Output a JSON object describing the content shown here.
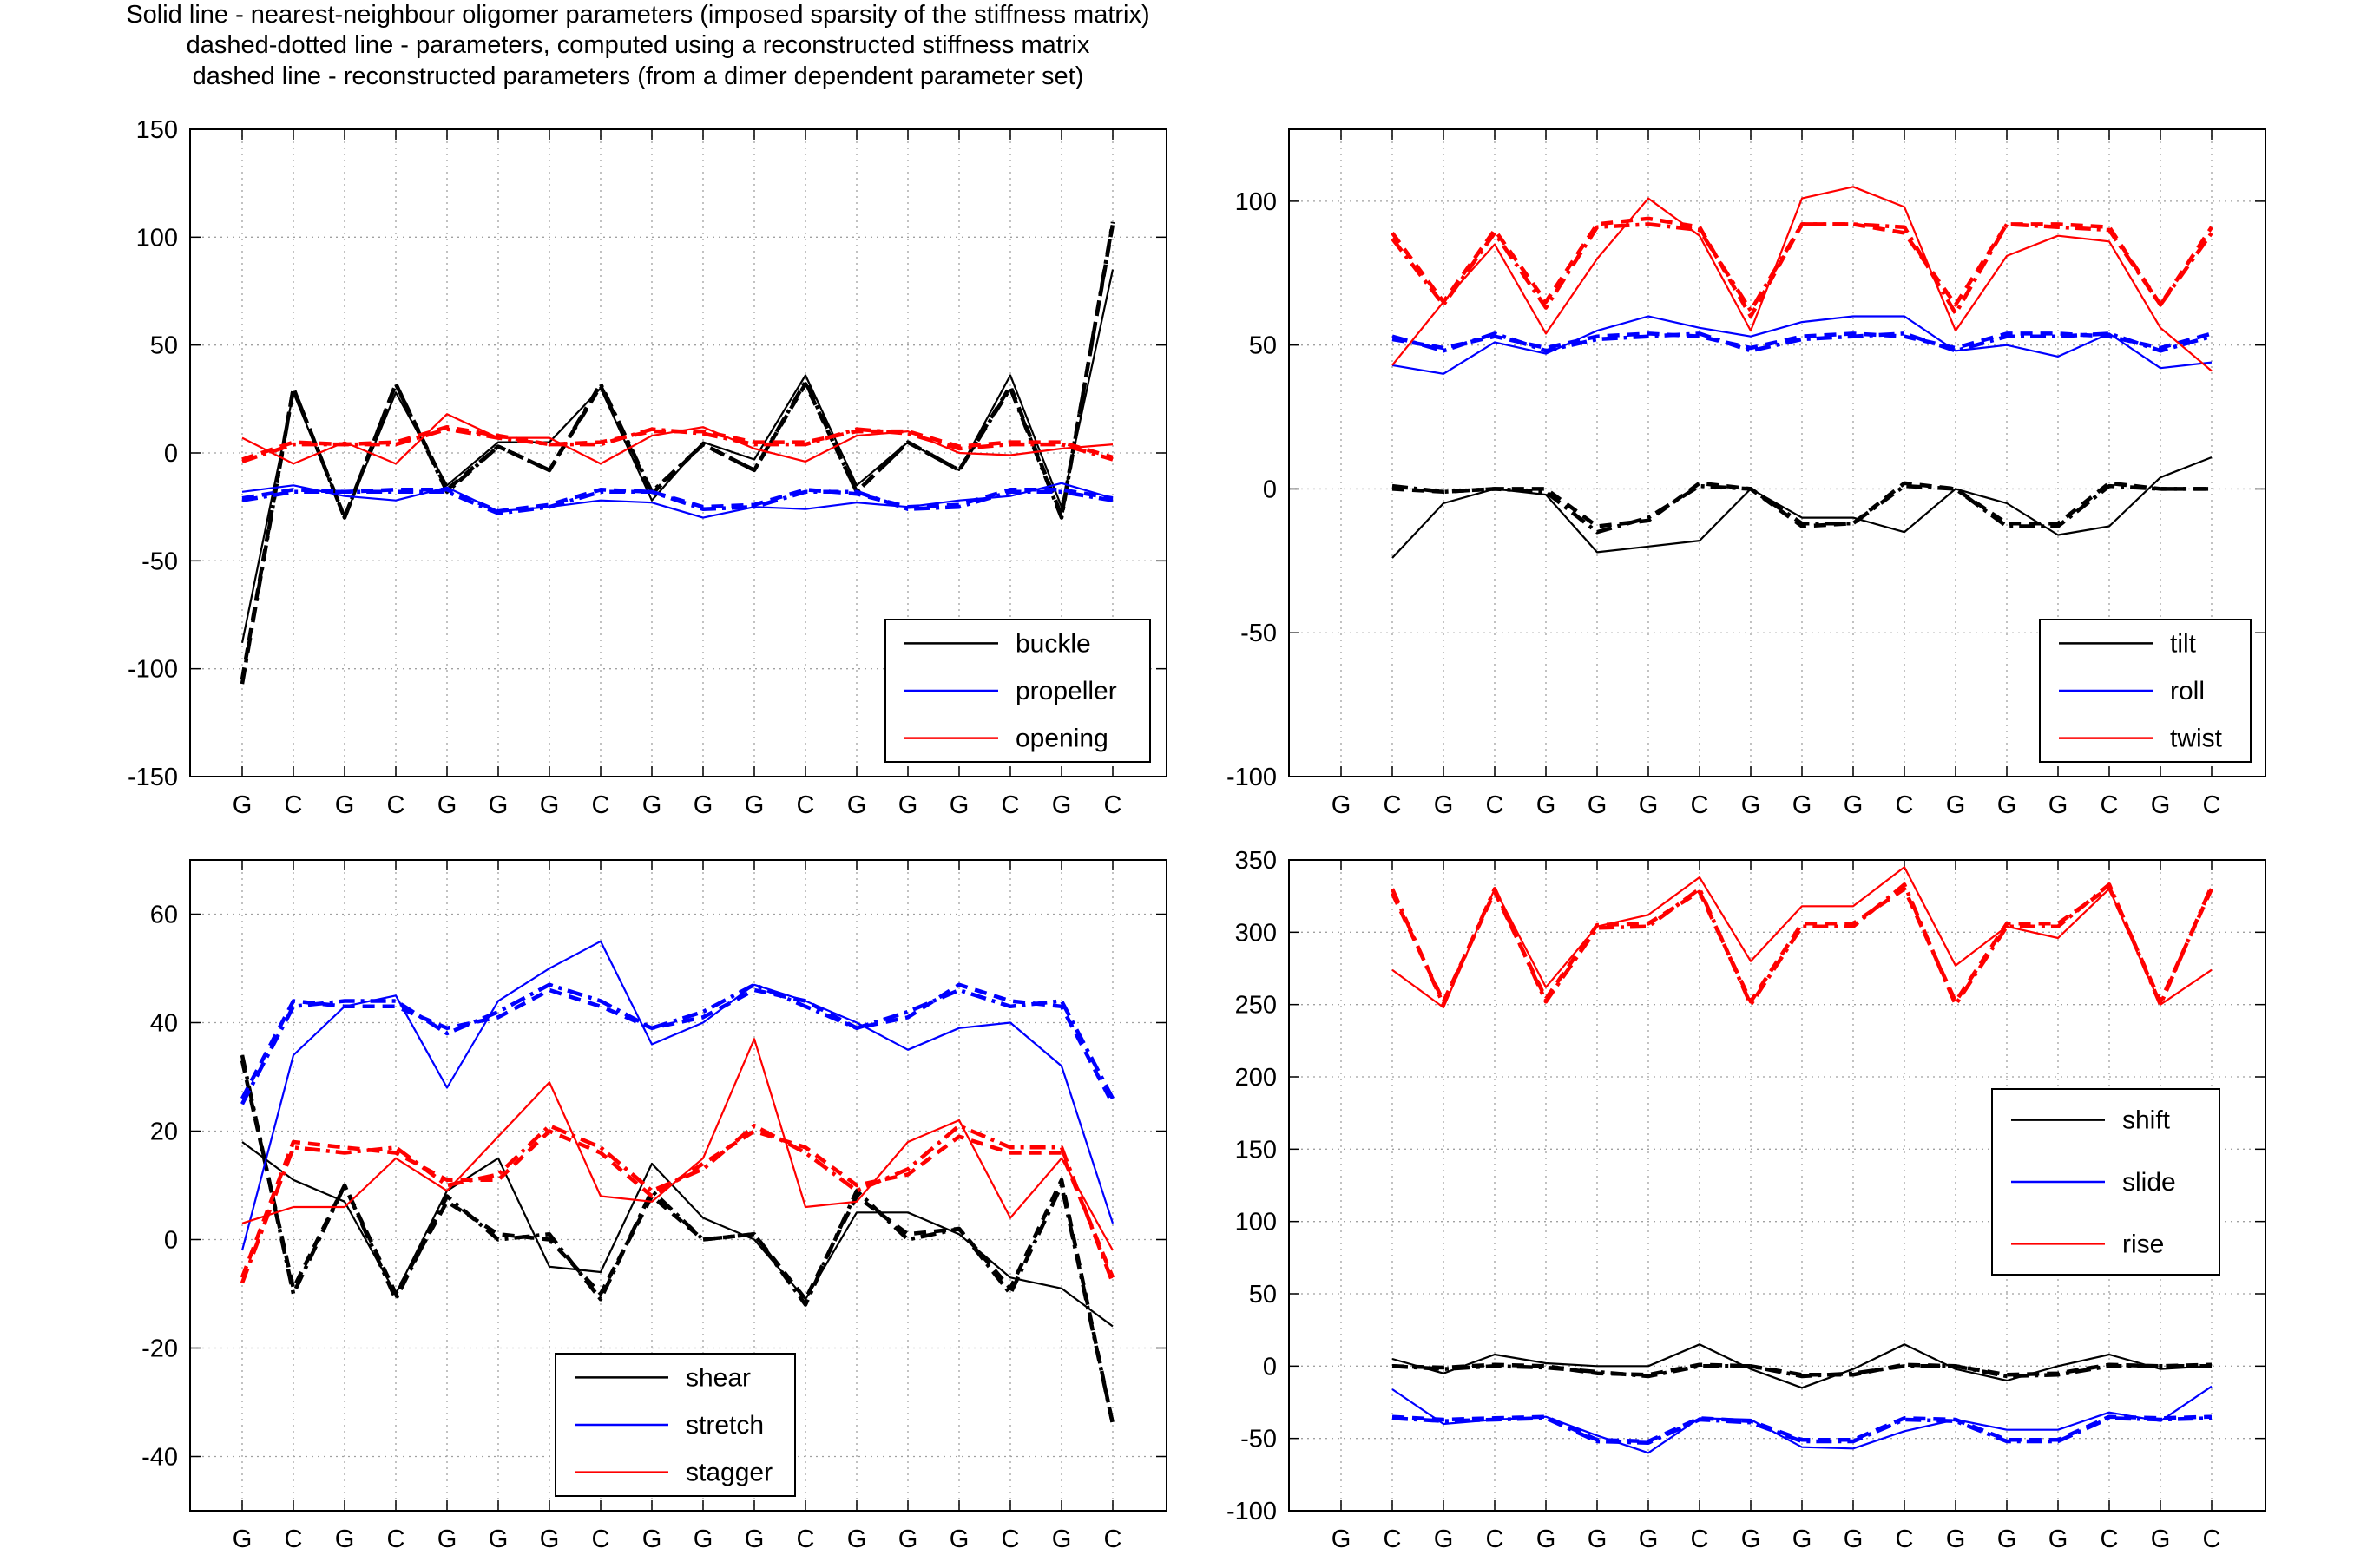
{
  "figure_title": [
    "Solid line - nearest-neighbour oligomer parameters (imposed sparsity of the stiffness matrix)",
    "dashed-dotted line - parameters, computed using a reconstructed stiffness matrix",
    "dashed line - reconstructed parameters (from a dimer dependent parameter set)"
  ],
  "colors": {
    "black": "#000000",
    "blue": "#0000ff",
    "red": "#ff0000",
    "grid": "#a0a0a0"
  },
  "chart_data": [
    {
      "id": "panel-base-pair-angles",
      "type": "line",
      "categories": [
        "G",
        "C",
        "G",
        "C",
        "G",
        "G",
        "G",
        "C",
        "G",
        "G",
        "G",
        "C",
        "G",
        "G",
        "G",
        "C",
        "G",
        "C"
      ],
      "ylim": [
        -150,
        150
      ],
      "yticks": [
        -150,
        -100,
        -50,
        0,
        50,
        100,
        150
      ],
      "grid": true,
      "legend_position": "bottom-right",
      "series": [
        {
          "name": "buckle",
          "color": "#000000",
          "solid": [
            -88,
            28,
            -30,
            28,
            -15,
            5,
            5,
            30,
            -22,
            5,
            -3,
            36,
            -15,
            5,
            -8,
            36,
            -25,
            85
          ],
          "dashdot": [
            -107,
            30,
            -30,
            32,
            -18,
            3,
            -8,
            32,
            -18,
            4,
            -8,
            33,
            -18,
            5,
            -8,
            30,
            -30,
            107
          ],
          "dashed": [
            -105,
            30,
            -30,
            32,
            -17,
            3,
            -8,
            31,
            -19,
            4,
            -8,
            32,
            -18,
            5,
            -8,
            31,
            -29,
            106
          ]
        },
        {
          "name": "propeller",
          "color": "#0000ff",
          "solid": [
            -18,
            -15,
            -20,
            -22,
            -16,
            -27,
            -25,
            -22,
            -23,
            -30,
            -25,
            -26,
            -23,
            -25,
            -22,
            -20,
            -14,
            -21
          ],
          "dashdot": [
            -22,
            -18,
            -18,
            -18,
            -18,
            -28,
            -25,
            -18,
            -18,
            -26,
            -25,
            -18,
            -18,
            -26,
            -25,
            -18,
            -18,
            -22
          ],
          "dashed": [
            -21,
            -17,
            -18,
            -17,
            -17,
            -27,
            -24,
            -17,
            -18,
            -25,
            -24,
            -17,
            -19,
            -25,
            -24,
            -17,
            -17,
            -21
          ]
        },
        {
          "name": "opening",
          "color": "#ff0000",
          "solid": [
            7,
            -5,
            5,
            -5,
            18,
            7,
            7,
            -5,
            8,
            12,
            2,
            -4,
            8,
            10,
            0,
            -1,
            2,
            4
          ],
          "dashdot": [
            -4,
            4,
            4,
            4,
            11,
            7,
            4,
            4,
            11,
            9,
            4,
            4,
            11,
            9,
            2,
            4,
            4,
            -3
          ],
          "dashed": [
            -3,
            5,
            4,
            5,
            12,
            8,
            4,
            5,
            10,
            10,
            5,
            5,
            10,
            10,
            3,
            5,
            5,
            -2
          ]
        }
      ]
    },
    {
      "id": "panel-step-angles",
      "type": "line",
      "categories": [
        "G",
        "C",
        "G",
        "C",
        "G",
        "G",
        "G",
        "C",
        "G",
        "G",
        "G",
        "C",
        "G",
        "G",
        "G",
        "C",
        "G",
        "C"
      ],
      "ylim": [
        -100,
        125
      ],
      "yticks": [
        -100,
        -50,
        0,
        50,
        100
      ],
      "grid": true,
      "legend_position": "bottom-right",
      "series": [
        {
          "name": "tilt",
          "color": "#000000",
          "solid": [
            null,
            -24,
            -5,
            0,
            -2,
            -22,
            -20,
            -18,
            0,
            -10,
            -10,
            -15,
            0,
            -5,
            -16,
            -13,
            4,
            11
          ],
          "dashdot": [
            null,
            1,
            -1,
            0,
            -1,
            -15,
            -10,
            1,
            0,
            -12,
            -12,
            1,
            0,
            -13,
            -13,
            1,
            0,
            0
          ],
          "dashed": [
            null,
            0,
            -1,
            0,
            0,
            -13,
            -11,
            2,
            0,
            -13,
            -12,
            2,
            0,
            -12,
            -12,
            2,
            0,
            0
          ]
        },
        {
          "name": "roll",
          "color": "#0000ff",
          "solid": [
            null,
            43,
            40,
            51,
            47,
            55,
            60,
            56,
            53,
            58,
            60,
            60,
            48,
            50,
            46,
            54,
            42,
            44
          ],
          "dashdot": [
            null,
            53,
            48,
            54,
            48,
            52,
            53,
            54,
            48,
            52,
            53,
            54,
            48,
            53,
            53,
            54,
            48,
            53
          ],
          "dashed": [
            null,
            52,
            49,
            53,
            49,
            53,
            54,
            53,
            49,
            53,
            54,
            53,
            49,
            54,
            54,
            53,
            49,
            54
          ]
        },
        {
          "name": "twist",
          "color": "#ff0000",
          "solid": [
            null,
            43,
            65,
            85,
            54,
            80,
            101,
            88,
            55,
            101,
            105,
            98,
            55,
            81,
            88,
            86,
            56,
            41
          ],
          "dashdot": [
            null,
            87,
            64,
            89,
            63,
            91,
            92,
            90,
            62,
            92,
            92,
            91,
            61,
            92,
            91,
            90,
            64,
            89
          ],
          "dashed": [
            null,
            89,
            65,
            90,
            65,
            92,
            94,
            91,
            60,
            92,
            92,
            89,
            64,
            92,
            92,
            91,
            64,
            91
          ]
        }
      ]
    },
    {
      "id": "panel-base-pair-translations",
      "type": "line",
      "categories": [
        "G",
        "C",
        "G",
        "C",
        "G",
        "G",
        "G",
        "C",
        "G",
        "G",
        "G",
        "C",
        "G",
        "G",
        "G",
        "C",
        "G",
        "C"
      ],
      "ylim": [
        -50,
        70
      ],
      "yticks": [
        -40,
        -20,
        0,
        20,
        40,
        60
      ],
      "grid": true,
      "legend_position": "bottom-center",
      "series": [
        {
          "name": "shear",
          "color": "#000000",
          "solid": [
            18,
            11,
            7,
            -10,
            9,
            15,
            -5,
            -6,
            14,
            4,
            0,
            -11,
            5,
            5,
            1,
            -7,
            -9,
            -16
          ],
          "dashdot": [
            34,
            -10,
            10,
            -11,
            8,
            0,
            1,
            -11,
            9,
            0,
            1,
            -12,
            9,
            0,
            2,
            -10,
            10,
            -34
          ],
          "dashed": [
            33,
            -9,
            10,
            -10,
            7,
            1,
            0,
            -10,
            8,
            0,
            1,
            -11,
            8,
            1,
            2,
            -9,
            11,
            -34
          ]
        },
        {
          "name": "stretch",
          "color": "#0000ff",
          "solid": [
            -2,
            34,
            43,
            45,
            28,
            44,
            50,
            55,
            36,
            40,
            47,
            44,
            40,
            35,
            39,
            40,
            32,
            3
          ],
          "dashdot": [
            25,
            43,
            44,
            44,
            38,
            42,
            47,
            44,
            39,
            42,
            47,
            43,
            39,
            42,
            46,
            43,
            44,
            26
          ],
          "dashed": [
            26,
            44,
            43,
            43,
            39,
            41,
            46,
            43,
            39,
            41,
            46,
            44,
            39,
            41,
            47,
            44,
            43,
            25
          ]
        },
        {
          "name": "stagger",
          "color": "#ff0000",
          "solid": [
            3,
            6,
            6,
            15,
            9,
            19,
            29,
            8,
            7,
            15,
            37,
            6,
            7,
            18,
            22,
            4,
            15,
            -2
          ],
          "dashdot": [
            -8,
            17,
            16,
            17,
            10,
            12,
            21,
            17,
            9,
            13,
            21,
            16,
            9,
            13,
            21,
            17,
            17,
            -8
          ],
          "dashed": [
            -7,
            18,
            17,
            16,
            11,
            11,
            20,
            16,
            8,
            14,
            20,
            17,
            10,
            12,
            19,
            16,
            16,
            -7
          ]
        }
      ]
    },
    {
      "id": "panel-step-translations",
      "type": "line",
      "categories": [
        "G",
        "C",
        "G",
        "C",
        "G",
        "G",
        "G",
        "C",
        "G",
        "G",
        "G",
        "C",
        "G",
        "G",
        "G",
        "C",
        "G",
        "C"
      ],
      "ylim": [
        -100,
        350
      ],
      "yticks": [
        -100,
        -50,
        0,
        50,
        100,
        150,
        200,
        250,
        300,
        350
      ],
      "grid": true,
      "legend_position": "middle-right",
      "series": [
        {
          "name": "shift",
          "color": "#000000",
          "solid": [
            null,
            5,
            -5,
            8,
            2,
            0,
            0,
            15,
            -2,
            -15,
            -2,
            15,
            -2,
            -10,
            0,
            8,
            -2,
            0
          ],
          "dashdot": [
            null,
            0,
            -2,
            0,
            -1,
            -4,
            -7,
            0,
            0,
            -7,
            -5,
            0,
            0,
            -7,
            -6,
            0,
            0,
            0
          ],
          "dashed": [
            null,
            0,
            -1,
            1,
            0,
            -5,
            -6,
            1,
            0,
            -6,
            -6,
            1,
            0,
            -6,
            -5,
            1,
            0,
            1
          ]
        },
        {
          "name": "slide",
          "color": "#0000ff",
          "solid": [
            null,
            -16,
            -40,
            -37,
            -35,
            -48,
            -60,
            -36,
            -37,
            -56,
            -57,
            -45,
            -37,
            -44,
            -44,
            -32,
            -38,
            -14
          ],
          "dashdot": [
            null,
            -36,
            -38,
            -37,
            -36,
            -52,
            -53,
            -37,
            -39,
            -52,
            -52,
            -37,
            -38,
            -52,
            -52,
            -36,
            -37,
            -36
          ],
          "dashed": [
            null,
            -35,
            -37,
            -36,
            -35,
            -51,
            -52,
            -36,
            -38,
            -51,
            -51,
            -36,
            -37,
            -51,
            -51,
            -35,
            -36,
            -35
          ]
        },
        {
          "name": "rise",
          "color": "#ff0000",
          "solid": [
            null,
            274,
            248,
            330,
            262,
            304,
            312,
            338,
            280,
            318,
            318,
            345,
            277,
            304,
            296,
            330,
            250,
            274
          ],
          "dashdot": [
            null,
            330,
            250,
            330,
            252,
            303,
            304,
            330,
            250,
            304,
            304,
            333,
            250,
            304,
            304,
            333,
            250,
            332
          ],
          "dashed": [
            null,
            327,
            252,
            328,
            254,
            305,
            306,
            328,
            252,
            306,
            306,
            330,
            252,
            306,
            306,
            331,
            252,
            330
          ]
        }
      ]
    }
  ]
}
